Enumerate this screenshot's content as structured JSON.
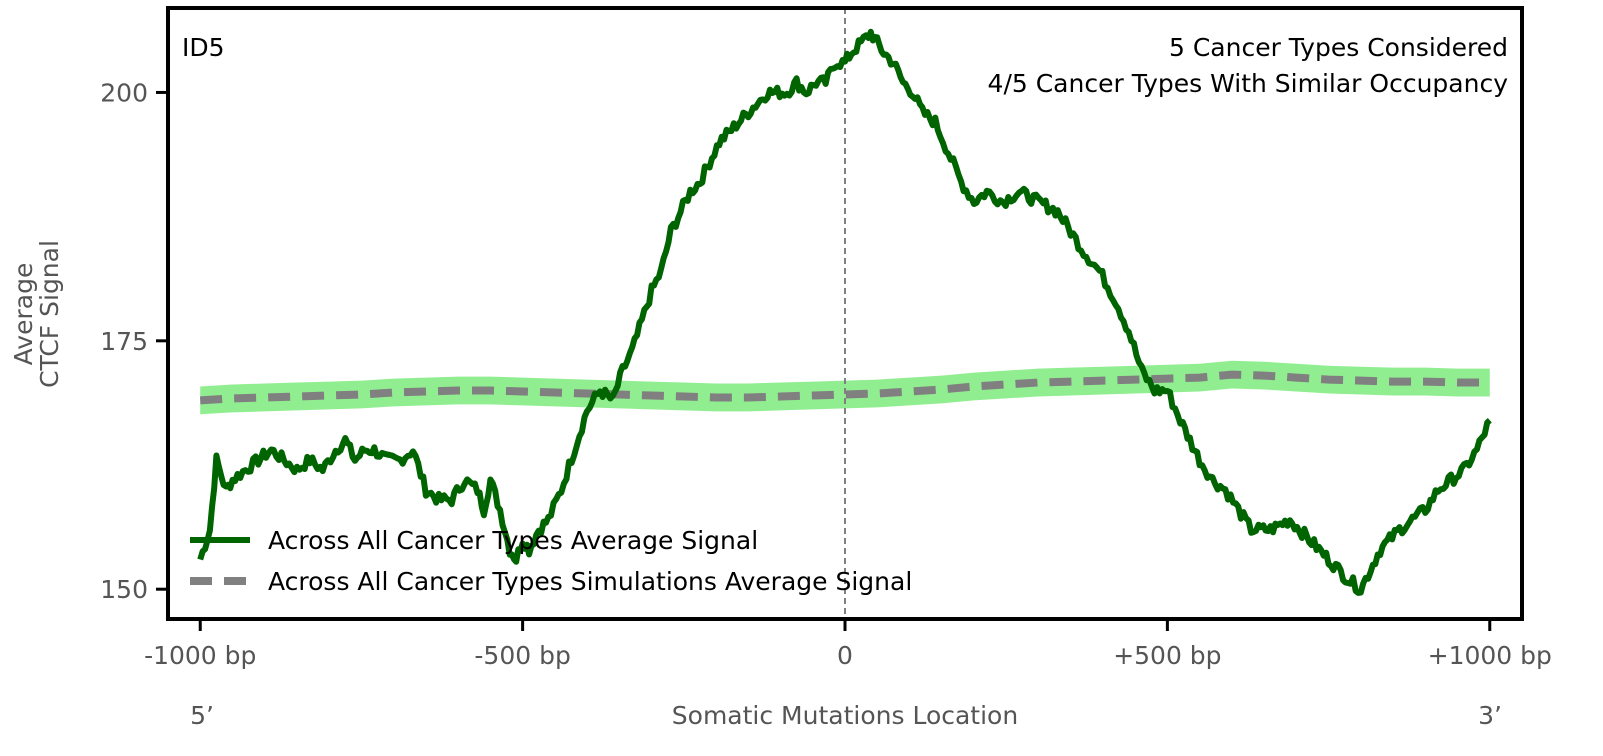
{
  "chart_data": {
    "type": "line",
    "panel_label": "ID5",
    "annotations": [
      "5 Cancer Types Considered",
      "4/5 Cancer Types With Similar Occupancy"
    ],
    "xlabel": "Somatic Mutations Location",
    "ylabel_lines": [
      "Average",
      "CTCF Signal"
    ],
    "x_end_labels": {
      "left": "5’",
      "right": "3’"
    },
    "xlim": [
      -1050,
      1050
    ],
    "ylim": [
      147,
      208.5
    ],
    "x_ticks": [
      {
        "value": -1000,
        "label": "-1000 bp"
      },
      {
        "value": -500,
        "label": "-500 bp"
      },
      {
        "value": 0,
        "label": "0"
      },
      {
        "value": 500,
        "label": "+500 bp"
      },
      {
        "value": 1000,
        "label": "+1000 bp"
      }
    ],
    "y_ticks": [
      {
        "value": 150,
        "label": "150"
      },
      {
        "value": 175,
        "label": "175"
      },
      {
        "value": 200,
        "label": "200"
      }
    ],
    "vline_x": 0,
    "legend_position": "lower-left",
    "colors": {
      "real": "#006400",
      "sim": "#808080",
      "band": "#90ee90",
      "vline": "#808080",
      "tick_text": "#555555",
      "frame": "#000000"
    },
    "series": [
      {
        "name": "Across All Cancer Types Average Signal",
        "style": "solid",
        "color": "#006400",
        "x": [
          -1000,
          -985,
          -975,
          -960,
          -950,
          -930,
          -910,
          -890,
          -870,
          -850,
          -830,
          -810,
          -790,
          -775,
          -760,
          -745,
          -730,
          -710,
          -690,
          -670,
          -650,
          -630,
          -610,
          -590,
          -570,
          -560,
          -550,
          -535,
          -520,
          -510,
          -500,
          -490,
          -475,
          -460,
          -440,
          -420,
          -400,
          -380,
          -360,
          -345,
          -330,
          -315,
          -300,
          -285,
          -270,
          -255,
          -240,
          -225,
          -210,
          -195,
          -180,
          -165,
          -150,
          -135,
          -120,
          -105,
          -90,
          -75,
          -60,
          -45,
          -30,
          -15,
          0,
          10,
          25,
          40,
          50,
          60,
          75,
          90,
          105,
          120,
          140,
          160,
          180,
          200,
          220,
          245,
          270,
          300,
          330,
          350,
          370,
          395,
          420,
          440,
          460,
          480,
          500,
          520,
          535,
          550,
          570,
          590,
          610,
          630,
          660,
          690,
          720,
          750,
          780,
          800,
          815,
          830,
          845,
          860,
          880,
          900,
          920,
          940,
          960,
          980,
          1000
        ],
        "values": [
          153,
          156,
          163,
          160,
          161,
          162,
          163,
          164,
          163,
          162,
          163,
          162,
          164,
          165,
          163,
          164,
          164,
          163,
          163,
          164,
          160,
          159,
          159,
          161,
          160,
          158,
          161,
          158,
          154,
          153,
          155,
          154,
          156,
          157,
          160,
          164,
          168,
          170,
          169,
          172,
          174,
          177,
          180,
          182,
          186,
          188,
          190,
          191,
          193,
          195,
          196,
          197,
          198,
          199,
          200,
          200,
          200,
          201,
          200,
          201,
          201,
          203,
          203,
          204,
          205,
          206,
          205,
          204,
          203,
          201,
          200,
          198,
          197,
          194,
          191,
          189,
          190,
          189,
          190,
          189,
          188,
          186,
          184,
          182,
          179,
          176,
          172,
          170,
          170,
          167,
          165,
          163,
          161,
          160,
          158,
          156,
          156,
          157,
          155,
          153,
          151,
          150,
          152,
          154,
          155,
          156,
          157,
          158,
          160,
          161,
          162,
          164,
          167
        ]
      },
      {
        "name": "Across All Cancer Types Simulations Average Signal",
        "style": "dashed",
        "color": "#808080",
        "x": [
          -1000,
          -950,
          -900,
          -850,
          -800,
          -750,
          -700,
          -650,
          -600,
          -550,
          -500,
          -450,
          -400,
          -350,
          -300,
          -250,
          -200,
          -150,
          -100,
          -50,
          0,
          50,
          100,
          150,
          200,
          250,
          300,
          350,
          400,
          450,
          500,
          550,
          600,
          650,
          700,
          750,
          800,
          850,
          900,
          950,
          1000
        ],
        "values": [
          169.0,
          169.2,
          169.3,
          169.4,
          169.5,
          169.6,
          169.8,
          169.9,
          170.0,
          170.0,
          169.9,
          169.8,
          169.7,
          169.6,
          169.5,
          169.4,
          169.3,
          169.3,
          169.4,
          169.5,
          169.6,
          169.7,
          169.9,
          170.1,
          170.4,
          170.6,
          170.8,
          170.9,
          171.0,
          171.1,
          171.2,
          171.3,
          171.6,
          171.5,
          171.3,
          171.1,
          171.0,
          170.9,
          170.9,
          170.8,
          170.8
        ],
        "band": {
          "color": "#90ee90",
          "lower": [
            167.6,
            167.8,
            167.9,
            168.0,
            168.1,
            168.2,
            168.4,
            168.5,
            168.6,
            168.6,
            168.5,
            168.4,
            168.3,
            168.2,
            168.1,
            168.0,
            167.9,
            167.9,
            168.0,
            168.1,
            168.2,
            168.3,
            168.5,
            168.7,
            169.0,
            169.2,
            169.4,
            169.5,
            169.6,
            169.7,
            169.8,
            169.9,
            170.2,
            170.1,
            169.9,
            169.7,
            169.6,
            169.5,
            169.5,
            169.4,
            169.4
          ],
          "upper": [
            170.4,
            170.6,
            170.7,
            170.8,
            170.9,
            171.0,
            171.2,
            171.3,
            171.4,
            171.4,
            171.3,
            171.2,
            171.1,
            171.0,
            170.9,
            170.8,
            170.7,
            170.7,
            170.8,
            170.9,
            171.0,
            171.1,
            171.3,
            171.5,
            171.8,
            172.0,
            172.2,
            172.3,
            172.4,
            172.5,
            172.6,
            172.7,
            173.0,
            172.9,
            172.7,
            172.5,
            172.4,
            172.3,
            172.3,
            172.2,
            172.2
          ]
        }
      }
    ]
  }
}
